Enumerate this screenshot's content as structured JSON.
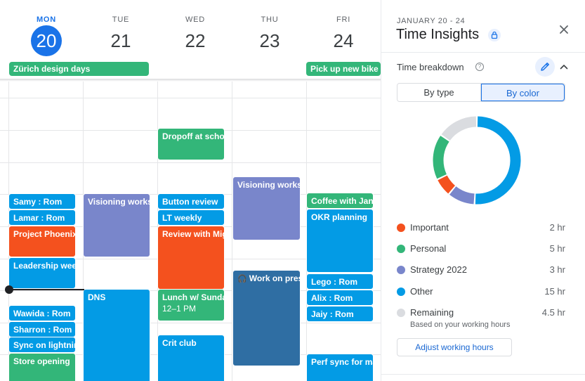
{
  "days": [
    {
      "dow": "MON",
      "num": "20",
      "today": true
    },
    {
      "dow": "TUE",
      "num": "21"
    },
    {
      "dow": "WED",
      "num": "22"
    },
    {
      "dow": "THU",
      "num": "23"
    },
    {
      "dow": "FRI",
      "num": "24"
    }
  ],
  "allday_events": [
    {
      "title": "Zürich design days",
      "color": "#33b679"
    },
    {
      "title": "Pick up new bike",
      "color": "#33b679"
    }
  ],
  "events": {
    "dropoff": {
      "title": "Dropoff at school"
    },
    "visioning_thu": {
      "title": "Visioning workshop"
    },
    "samy": {
      "title": "Samy : Rom"
    },
    "visioning_tue": {
      "title": "Visioning workshop"
    },
    "button_review": {
      "title": "Button review"
    },
    "coffee": {
      "title": "Coffee with Janice"
    },
    "lamar": {
      "title": "Lamar : Rom"
    },
    "lt_weekly": {
      "title": "LT weekly"
    },
    "okr": {
      "title": "OKR planning"
    },
    "phoenix": {
      "title": "Project Phoenix"
    },
    "review": {
      "title": "Review with Miguel"
    },
    "leadership": {
      "title": "Leadership week"
    },
    "work_on": {
      "title": "Work on presentation"
    },
    "lego": {
      "title": "Lego : Rom"
    },
    "dns": {
      "title": "DNS"
    },
    "lunch": {
      "title": "Lunch w/ Sundar",
      "time": "12–1 PM"
    },
    "alix": {
      "title": "Alix : Rom"
    },
    "wawida": {
      "title": "Wawida : Rom"
    },
    "jaiy": {
      "title": "Jaiy : Rom"
    },
    "sharron": {
      "title": "Sharron : Rom"
    },
    "crit": {
      "title": "Crit club"
    },
    "sync": {
      "title": "Sync on lightning"
    },
    "store": {
      "title": "Store opening"
    },
    "perf": {
      "title": "Perf sync for marketing"
    }
  },
  "event_colors": {
    "green": "#33b679",
    "blue": "#039be5",
    "orange": "#f4511e",
    "lavender": "#7986cb",
    "dark_blue": "#2f6ea3"
  },
  "panel": {
    "date_range": "JANUARY 20 - 24",
    "title": "Time Insights",
    "section_title": "Time breakdown",
    "toggle": {
      "by_type": "By type",
      "by_color": "By color",
      "selected": "By color"
    },
    "legend": [
      {
        "label": "Important",
        "value": "2 hr",
        "hours": 2,
        "color": "#f4511e"
      },
      {
        "label": "Personal",
        "value": "5 hr",
        "hours": 5,
        "color": "#33b679"
      },
      {
        "label": "Strategy 2022",
        "value": "3 hr",
        "hours": 3,
        "color": "#7986cb"
      },
      {
        "label": "Other",
        "value": "15 hr",
        "hours": 15,
        "color": "#039be5"
      },
      {
        "label": "Remaining",
        "value": "4.5 hr",
        "hours": 4.5,
        "color": "#dadce0"
      }
    ],
    "remaining_note": "Based on your working hours",
    "adjust_button": "Adjust working hours",
    "icons": {
      "lock": "lock-icon",
      "close": "close-icon",
      "help": "help-icon",
      "edit": "pencil-icon",
      "collapse": "chevron-up-icon"
    }
  }
}
